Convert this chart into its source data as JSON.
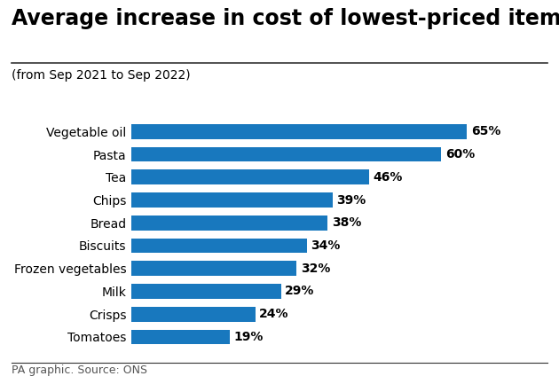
{
  "title": "Average increase in cost of lowest-priced items",
  "subtitle": "(from Sep 2021 to Sep 2022)",
  "footer": "PA graphic. Source: ONS",
  "categories": [
    "Vegetable oil",
    "Pasta",
    "Tea",
    "Chips",
    "Bread",
    "Biscuits",
    "Frozen vegetables",
    "Milk",
    "Crisps",
    "Tomatoes"
  ],
  "values": [
    65,
    60,
    46,
    39,
    38,
    34,
    32,
    29,
    24,
    19
  ],
  "bar_color": "#1878be",
  "label_color": "#000000",
  "background_color": "#ffffff",
  "title_fontsize": 17,
  "subtitle_fontsize": 10,
  "category_fontsize": 10,
  "value_fontsize": 10,
  "footer_fontsize": 9,
  "xlim": [
    0,
    78
  ]
}
